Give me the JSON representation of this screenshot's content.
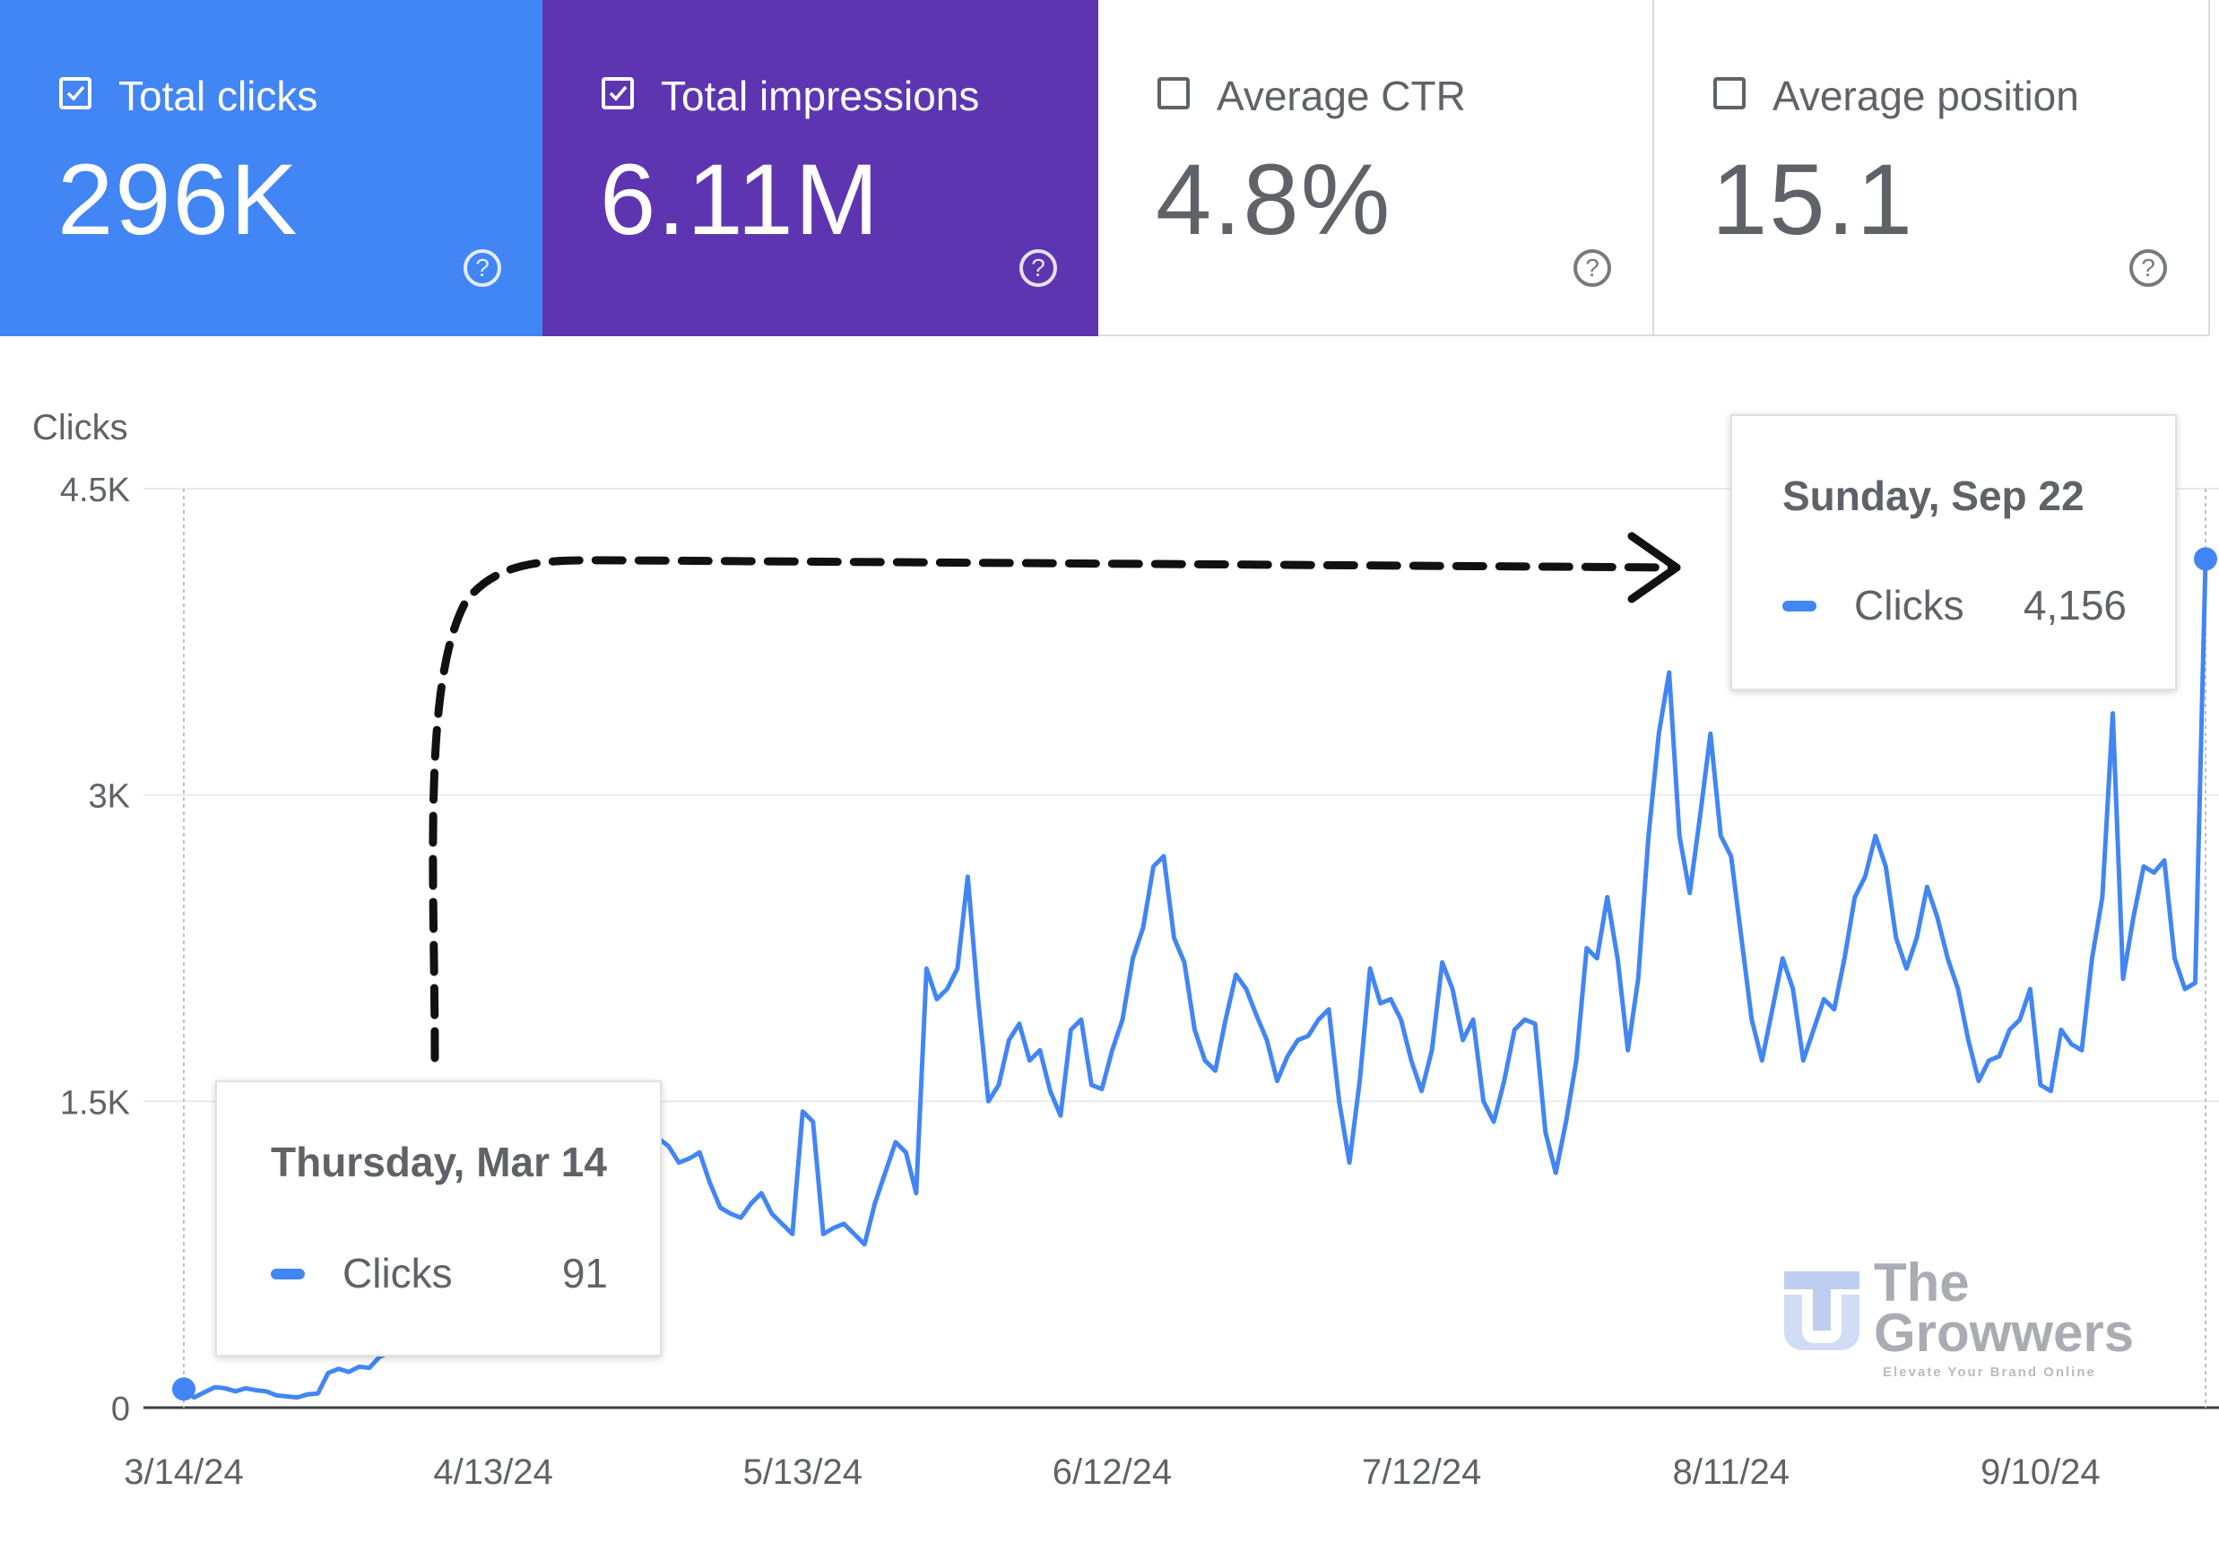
{
  "metrics": [
    {
      "label": "Total clicks",
      "value": "296K",
      "checked": true,
      "color": "#4285f4"
    },
    {
      "label": "Total impressions",
      "value": "6.11M",
      "checked": true,
      "color": "#5e35b1"
    },
    {
      "label": "Average CTR",
      "value": "4.8%",
      "checked": false,
      "color": "#ffffff"
    },
    {
      "label": "Average position",
      "value": "15.1",
      "checked": false,
      "color": "#ffffff"
    }
  ],
  "help_glyph": "?",
  "tooltips": {
    "start": {
      "date": "Thursday, Mar 14",
      "series": "Clicks",
      "value": "91"
    },
    "end": {
      "date": "Sunday, Sep 22",
      "series": "Clicks",
      "value": "4,156"
    }
  },
  "logo": {
    "line1": "The",
    "line2": "Growwers",
    "tagline": "Elevate Your Brand Online"
  },
  "chart_data": {
    "type": "line",
    "ylabel": "Clicks",
    "ylim": [
      0,
      4500
    ],
    "yticks": [
      0,
      1500,
      3000,
      4500
    ],
    "ytick_labels": [
      "0",
      "1.5K",
      "3K",
      "4.5K"
    ],
    "x_start": "2024-03-14",
    "xticks": [
      "2024-03-14",
      "2024-04-13",
      "2024-05-13",
      "2024-06-12",
      "2024-07-12",
      "2024-08-11",
      "2024-09-10"
    ],
    "xtick_labels": [
      "3/14/24",
      "4/13/24",
      "5/13/24",
      "6/12/24",
      "7/12/24",
      "8/11/24",
      "9/10/24"
    ],
    "grid": true,
    "series": [
      {
        "name": "Clicks",
        "color": "#4285f4",
        "values": [
          91,
          50,
          75,
          100,
          95,
          80,
          95,
          85,
          80,
          60,
          55,
          50,
          65,
          70,
          170,
          190,
          175,
          200,
          195,
          250,
          270,
          340,
          380,
          400,
          420,
          410,
          430,
          440,
          450,
          460,
          470,
          480,
          490,
          500,
          520,
          540,
          560,
          600,
          640,
          700,
          780,
          850,
          950,
          1050,
          1150,
          1250,
          1320,
          1280,
          1200,
          1220,
          1250,
          1100,
          980,
          950,
          930,
          1000,
          1050,
          950,
          900,
          850,
          1450,
          1400,
          850,
          880,
          900,
          850,
          800,
          1000,
          1150,
          1300,
          1250,
          1050,
          2150,
          2000,
          2050,
          2150,
          2600,
          2000,
          1500,
          1580,
          1800,
          1880,
          1700,
          1750,
          1550,
          1430,
          1850,
          1900,
          1580,
          1560,
          1750,
          1900,
          2200,
          2350,
          2650,
          2700,
          2300,
          2180,
          1850,
          1700,
          1650,
          1900,
          2120,
          2050,
          1920,
          1800,
          1600,
          1720,
          1800,
          1820,
          1900,
          1950,
          1500,
          1200,
          1600,
          2150,
          1980,
          2000,
          1900,
          1700,
          1550,
          1750,
          2180,
          2050,
          1800,
          1900,
          1500,
          1400,
          1600,
          1850,
          1900,
          1880,
          1350,
          1150,
          1400,
          1700,
          2250,
          2200,
          2500,
          2200,
          1750,
          2100,
          2800,
          3300,
          3600,
          2800,
          2520,
          2900,
          3300,
          2800,
          2700,
          2300,
          1900,
          1700,
          1950,
          2200,
          2050,
          1700,
          1850,
          2000,
          1950,
          2200,
          2500,
          2600,
          2800,
          2650,
          2300,
          2150,
          2300,
          2550,
          2400,
          2200,
          2050,
          1800,
          1600,
          1700,
          1720,
          1850,
          1900,
          2050,
          1580,
          1550,
          1850,
          1780,
          1750,
          2200,
          2500,
          3400,
          2100,
          2400,
          2650,
          2620,
          2680,
          2200,
          2050,
          2080,
          4156
        ]
      }
    ]
  }
}
